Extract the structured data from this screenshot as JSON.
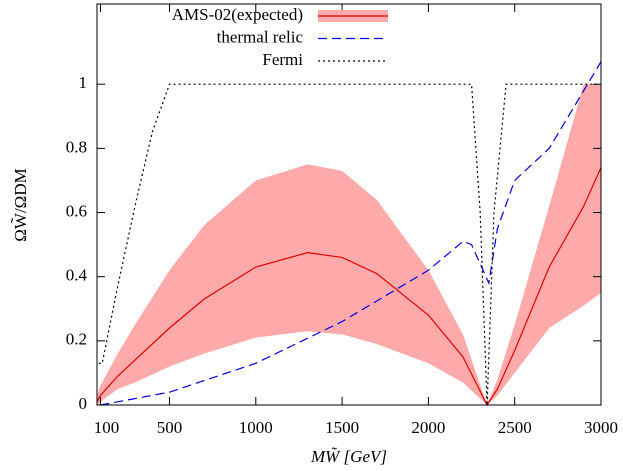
{
  "chart_data": {
    "type": "line",
    "xlabel": "MW̃ [GeV]",
    "ylabel": "ΩW̃/ΩDM",
    "xlim": [
      80,
      3000
    ],
    "ylim": [
      0,
      1.25
    ],
    "xticks": [
      100,
      500,
      1000,
      1500,
      2000,
      2500,
      3000
    ],
    "yticks": [
      0,
      0.2,
      0.4,
      0.6,
      0.8,
      1
    ],
    "legend": "top-left",
    "series": [
      {
        "name": "AMS-02(expected)",
        "color": "#e00000",
        "band_color": "#ffaaaa",
        "style": "solid",
        "x": [
          80,
          100,
          200,
          300,
          500,
          700,
          1000,
          1300,
          1500,
          1700,
          2000,
          2200,
          2340,
          2400,
          2500,
          2700,
          2900,
          3000
        ],
        "values": [
          0.01,
          0.03,
          0.09,
          0.14,
          0.24,
          0.33,
          0.43,
          0.475,
          0.46,
          0.41,
          0.28,
          0.15,
          0,
          0.05,
          0.17,
          0.43,
          0.62,
          0.74
        ],
        "upper": [
          0.03,
          0.06,
          0.16,
          0.25,
          0.42,
          0.56,
          0.7,
          0.75,
          0.73,
          0.64,
          0.42,
          0.22,
          0,
          0.08,
          0.25,
          0.62,
          1.0,
          1.0
        ],
        "lower": [
          0,
          0.01,
          0.05,
          0.07,
          0.12,
          0.16,
          0.21,
          0.23,
          0.22,
          0.19,
          0.13,
          0.07,
          0,
          0.03,
          0.1,
          0.24,
          0.31,
          0.35
        ]
      },
      {
        "name": "thermal relic",
        "color": "#0000dd",
        "style": "dashed",
        "x": [
          100,
          500,
          1000,
          1500,
          2000,
          2200,
          2250,
          2300,
          2350,
          2400,
          2500,
          2700,
          3000
        ],
        "values": [
          0,
          0.04,
          0.13,
          0.26,
          0.42,
          0.51,
          0.5,
          0.44,
          0.38,
          0.55,
          0.7,
          0.8,
          1.07
        ]
      },
      {
        "name": "Fermi",
        "color": "#000000",
        "style": "dotted",
        "x": [
          90,
          110,
          200,
          300,
          400,
          500,
          2250,
          2300,
          2340,
          2380,
          2450,
          3000
        ],
        "values": [
          0.13,
          0.13,
          0.37,
          0.62,
          0.85,
          1.0,
          1.0,
          0.6,
          0,
          0.6,
          1.0,
          1.0
        ]
      }
    ]
  }
}
